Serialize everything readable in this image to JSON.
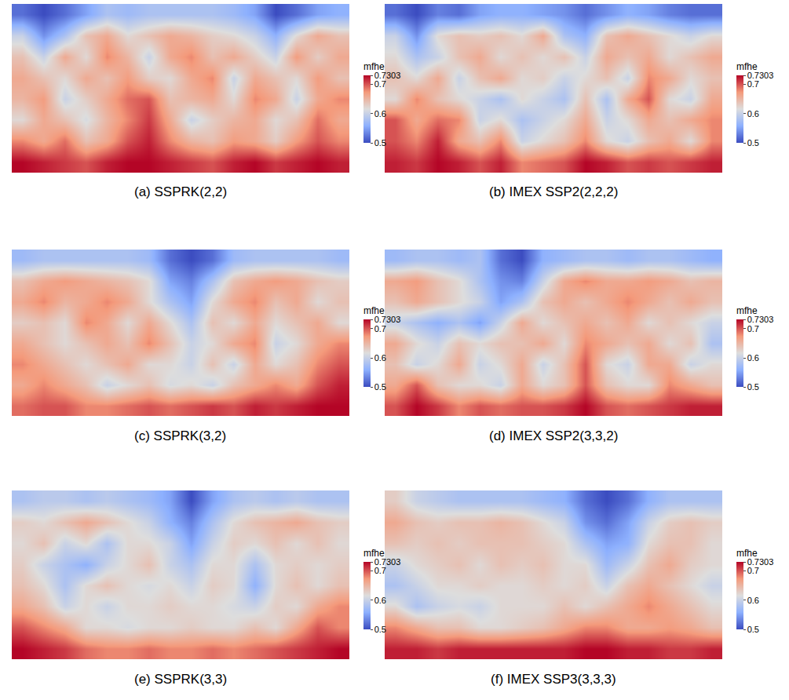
{
  "chart_data": [
    {
      "type": "heatmap",
      "title": "(a) SSPRK(2,2)",
      "tick_labels": false,
      "colorbar": {
        "title": "mfhe",
        "range": [
          0.5,
          0.7303
        ],
        "ticks": [
          0.5,
          0.6,
          0.7,
          0.7303
        ]
      },
      "z": [
        [
          0.52,
          0.5,
          0.52,
          0.55,
          0.58,
          0.57,
          0.58,
          0.58,
          0.58,
          0.58,
          0.57,
          0.55,
          0.5,
          0.52,
          0.55,
          0.56
        ],
        [
          0.6,
          0.54,
          0.58,
          0.64,
          0.66,
          0.62,
          0.64,
          0.66,
          0.65,
          0.63,
          0.62,
          0.6,
          0.56,
          0.62,
          0.66,
          0.64
        ],
        [
          0.64,
          0.6,
          0.66,
          0.62,
          0.68,
          0.65,
          0.6,
          0.66,
          0.68,
          0.64,
          0.66,
          0.63,
          0.6,
          0.67,
          0.63,
          0.66
        ],
        [
          0.66,
          0.64,
          0.62,
          0.66,
          0.64,
          0.67,
          0.63,
          0.62,
          0.66,
          0.68,
          0.6,
          0.66,
          0.64,
          0.62,
          0.67,
          0.64
        ],
        [
          0.65,
          0.67,
          0.6,
          0.63,
          0.66,
          0.69,
          0.7,
          0.64,
          0.65,
          0.66,
          0.62,
          0.68,
          0.66,
          0.6,
          0.66,
          0.68
        ],
        [
          0.62,
          0.66,
          0.64,
          0.61,
          0.65,
          0.68,
          0.71,
          0.66,
          0.6,
          0.63,
          0.65,
          0.66,
          0.62,
          0.64,
          0.69,
          0.66
        ],
        [
          0.68,
          0.66,
          0.69,
          0.64,
          0.66,
          0.7,
          0.72,
          0.68,
          0.65,
          0.64,
          0.67,
          0.66,
          0.63,
          0.67,
          0.7,
          0.68
        ],
        [
          0.73,
          0.72,
          0.71,
          0.7,
          0.72,
          0.73,
          0.73,
          0.72,
          0.71,
          0.7,
          0.72,
          0.73,
          0.71,
          0.72,
          0.73,
          0.72
        ]
      ]
    },
    {
      "type": "heatmap",
      "title": "(b) IMEX SSP2(2,2,2)",
      "tick_labels": false,
      "colorbar": {
        "title": "mfhe",
        "range": [
          0.5,
          0.7303
        ],
        "ticks": [
          0.5,
          0.6,
          0.7,
          0.7303
        ]
      },
      "z": [
        [
          0.52,
          0.5,
          0.53,
          0.52,
          0.55,
          0.56,
          0.56,
          0.55,
          0.54,
          0.52,
          0.54,
          0.56,
          0.55,
          0.53,
          0.52,
          0.52
        ],
        [
          0.6,
          0.54,
          0.62,
          0.64,
          0.63,
          0.64,
          0.62,
          0.66,
          0.58,
          0.56,
          0.64,
          0.66,
          0.64,
          0.62,
          0.6,
          0.62
        ],
        [
          0.62,
          0.58,
          0.6,
          0.64,
          0.66,
          0.62,
          0.64,
          0.62,
          0.64,
          0.6,
          0.66,
          0.64,
          0.66,
          0.62,
          0.64,
          0.66
        ],
        [
          0.64,
          0.62,
          0.66,
          0.6,
          0.64,
          0.66,
          0.62,
          0.63,
          0.6,
          0.62,
          0.64,
          0.6,
          0.68,
          0.66,
          0.62,
          0.64
        ],
        [
          0.62,
          0.68,
          0.64,
          0.62,
          0.6,
          0.58,
          0.62,
          0.6,
          0.58,
          0.64,
          0.58,
          0.66,
          0.7,
          0.62,
          0.6,
          0.66
        ],
        [
          0.7,
          0.66,
          0.69,
          0.68,
          0.6,
          0.62,
          0.58,
          0.6,
          0.62,
          0.66,
          0.6,
          0.62,
          0.66,
          0.64,
          0.66,
          0.68
        ],
        [
          0.7,
          0.68,
          0.72,
          0.66,
          0.64,
          0.68,
          0.6,
          0.62,
          0.64,
          0.68,
          0.62,
          0.6,
          0.64,
          0.66,
          0.62,
          0.68
        ],
        [
          0.72,
          0.71,
          0.73,
          0.72,
          0.7,
          0.72,
          0.68,
          0.69,
          0.7,
          0.73,
          0.72,
          0.7,
          0.71,
          0.7,
          0.71,
          0.72
        ]
      ]
    },
    {
      "type": "heatmap",
      "title": "(c) SSPRK(3,2)",
      "tick_labels": false,
      "colorbar": {
        "title": "mfhe",
        "range": [
          0.5,
          0.7303
        ],
        "ticks": [
          0.5,
          0.6,
          0.7,
          0.7303
        ]
      },
      "z": [
        [
          0.57,
          0.58,
          0.58,
          0.58,
          0.58,
          0.58,
          0.57,
          0.52,
          0.5,
          0.52,
          0.57,
          0.58,
          0.58,
          0.58,
          0.58,
          0.57
        ],
        [
          0.64,
          0.66,
          0.67,
          0.66,
          0.65,
          0.64,
          0.62,
          0.55,
          0.53,
          0.58,
          0.64,
          0.66,
          0.67,
          0.66,
          0.64,
          0.63
        ],
        [
          0.66,
          0.68,
          0.65,
          0.66,
          0.68,
          0.66,
          0.62,
          0.58,
          0.55,
          0.62,
          0.66,
          0.68,
          0.64,
          0.66,
          0.62,
          0.64
        ],
        [
          0.63,
          0.64,
          0.62,
          0.68,
          0.66,
          0.62,
          0.66,
          0.62,
          0.58,
          0.64,
          0.62,
          0.66,
          0.62,
          0.64,
          0.66,
          0.62
        ],
        [
          0.66,
          0.64,
          0.62,
          0.64,
          0.66,
          0.64,
          0.68,
          0.64,
          0.6,
          0.62,
          0.66,
          0.68,
          0.6,
          0.62,
          0.66,
          0.68
        ],
        [
          0.68,
          0.66,
          0.64,
          0.62,
          0.64,
          0.66,
          0.62,
          0.62,
          0.6,
          0.64,
          0.6,
          0.66,
          0.62,
          0.64,
          0.68,
          0.7
        ],
        [
          0.66,
          0.68,
          0.66,
          0.64,
          0.6,
          0.62,
          0.64,
          0.61,
          0.62,
          0.6,
          0.64,
          0.66,
          0.68,
          0.66,
          0.7,
          0.72
        ],
        [
          0.69,
          0.7,
          0.7,
          0.68,
          0.68,
          0.69,
          0.7,
          0.69,
          0.7,
          0.71,
          0.7,
          0.72,
          0.71,
          0.72,
          0.73,
          0.73
        ]
      ]
    },
    {
      "type": "heatmap",
      "title": "(d) IMEX SSP2(3,3,2)",
      "tick_labels": false,
      "colorbar": {
        "title": "mfhe",
        "range": [
          0.5,
          0.7303
        ],
        "ticks": [
          0.5,
          0.6,
          0.7,
          0.7303
        ]
      },
      "z": [
        [
          0.57,
          0.58,
          0.58,
          0.57,
          0.58,
          0.52,
          0.5,
          0.56,
          0.57,
          0.58,
          0.58,
          0.57,
          0.58,
          0.58,
          0.57,
          0.56
        ],
        [
          0.66,
          0.67,
          0.64,
          0.62,
          0.58,
          0.54,
          0.53,
          0.6,
          0.66,
          0.68,
          0.66,
          0.66,
          0.67,
          0.66,
          0.64,
          0.65
        ],
        [
          0.64,
          0.66,
          0.64,
          0.62,
          0.6,
          0.55,
          0.58,
          0.64,
          0.66,
          0.64,
          0.66,
          0.68,
          0.66,
          0.64,
          0.66,
          0.64
        ],
        [
          0.6,
          0.58,
          0.56,
          0.58,
          0.55,
          0.6,
          0.66,
          0.62,
          0.64,
          0.66,
          0.64,
          0.66,
          0.62,
          0.64,
          0.62,
          0.6
        ],
        [
          0.66,
          0.62,
          0.6,
          0.64,
          0.62,
          0.64,
          0.64,
          0.66,
          0.62,
          0.68,
          0.66,
          0.64,
          0.66,
          0.62,
          0.64,
          0.58
        ],
        [
          0.64,
          0.6,
          0.62,
          0.66,
          0.6,
          0.62,
          0.66,
          0.6,
          0.64,
          0.7,
          0.62,
          0.6,
          0.66,
          0.66,
          0.6,
          0.62
        ],
        [
          0.66,
          0.7,
          0.64,
          0.62,
          0.62,
          0.6,
          0.66,
          0.62,
          0.64,
          0.7,
          0.64,
          0.62,
          0.62,
          0.68,
          0.66,
          0.64
        ],
        [
          0.7,
          0.73,
          0.71,
          0.68,
          0.7,
          0.69,
          0.7,
          0.7,
          0.71,
          0.73,
          0.7,
          0.69,
          0.7,
          0.71,
          0.72,
          0.72
        ]
      ]
    },
    {
      "type": "heatmap",
      "title": "(e) SSPRK(3,3)",
      "tick_labels": false,
      "colorbar": {
        "title": "mfhe",
        "range": [
          0.5,
          0.7303
        ],
        "ticks": [
          0.5,
          0.6,
          0.7,
          0.7303
        ]
      },
      "z": [
        [
          0.58,
          0.59,
          0.59,
          0.58,
          0.59,
          0.58,
          0.57,
          0.55,
          0.5,
          0.55,
          0.58,
          0.59,
          0.58,
          0.59,
          0.58,
          0.58
        ],
        [
          0.63,
          0.62,
          0.64,
          0.66,
          0.64,
          0.62,
          0.6,
          0.56,
          0.53,
          0.58,
          0.62,
          0.64,
          0.65,
          0.66,
          0.64,
          0.63
        ],
        [
          0.62,
          0.64,
          0.6,
          0.62,
          0.58,
          0.62,
          0.62,
          0.6,
          0.55,
          0.6,
          0.63,
          0.62,
          0.64,
          0.62,
          0.64,
          0.62
        ],
        [
          0.63,
          0.6,
          0.58,
          0.56,
          0.6,
          0.62,
          0.64,
          0.6,
          0.58,
          0.62,
          0.62,
          0.58,
          0.62,
          0.63,
          0.62,
          0.63
        ],
        [
          0.64,
          0.62,
          0.58,
          0.62,
          0.64,
          0.62,
          0.61,
          0.62,
          0.6,
          0.63,
          0.62,
          0.56,
          0.62,
          0.64,
          0.62,
          0.64
        ],
        [
          0.66,
          0.64,
          0.6,
          0.62,
          0.6,
          0.62,
          0.62,
          0.63,
          0.62,
          0.62,
          0.61,
          0.6,
          0.63,
          0.62,
          0.66,
          0.68
        ],
        [
          0.7,
          0.68,
          0.66,
          0.62,
          0.62,
          0.61,
          0.62,
          0.62,
          0.63,
          0.62,
          0.62,
          0.64,
          0.62,
          0.66,
          0.7,
          0.68
        ],
        [
          0.73,
          0.72,
          0.71,
          0.69,
          0.68,
          0.68,
          0.69,
          0.68,
          0.68,
          0.69,
          0.68,
          0.69,
          0.7,
          0.71,
          0.72,
          0.73
        ]
      ]
    },
    {
      "type": "heatmap",
      "title": "(f) IMEX SSP3(3,3,3)",
      "tick_labels": false,
      "colorbar": {
        "title": "mfhe",
        "range": [
          0.5,
          0.7303
        ],
        "ticks": [
          0.5,
          0.6,
          0.7,
          0.7303
        ]
      },
      "z": [
        [
          0.63,
          0.6,
          0.59,
          0.58,
          0.58,
          0.58,
          0.58,
          0.57,
          0.56,
          0.52,
          0.5,
          0.52,
          0.56,
          0.58,
          0.58,
          0.58
        ],
        [
          0.66,
          0.64,
          0.63,
          0.64,
          0.64,
          0.65,
          0.64,
          0.62,
          0.6,
          0.54,
          0.52,
          0.55,
          0.6,
          0.63,
          0.64,
          0.63
        ],
        [
          0.64,
          0.63,
          0.64,
          0.63,
          0.64,
          0.64,
          0.64,
          0.63,
          0.62,
          0.58,
          0.55,
          0.56,
          0.62,
          0.64,
          0.64,
          0.62
        ],
        [
          0.6,
          0.62,
          0.63,
          0.64,
          0.62,
          0.64,
          0.63,
          0.64,
          0.62,
          0.62,
          0.57,
          0.6,
          0.64,
          0.66,
          0.63,
          0.62
        ],
        [
          0.58,
          0.6,
          0.62,
          0.62,
          0.63,
          0.62,
          0.62,
          0.63,
          0.62,
          0.63,
          0.6,
          0.64,
          0.66,
          0.64,
          0.62,
          0.6
        ],
        [
          0.62,
          0.58,
          0.6,
          0.61,
          0.6,
          0.62,
          0.62,
          0.62,
          0.64,
          0.62,
          0.64,
          0.66,
          0.68,
          0.66,
          0.64,
          0.62
        ],
        [
          0.68,
          0.66,
          0.64,
          0.64,
          0.62,
          0.62,
          0.63,
          0.64,
          0.66,
          0.68,
          0.68,
          0.66,
          0.66,
          0.67,
          0.66,
          0.64
        ],
        [
          0.72,
          0.72,
          0.71,
          0.72,
          0.72,
          0.72,
          0.72,
          0.72,
          0.72,
          0.73,
          0.73,
          0.72,
          0.72,
          0.71,
          0.71,
          0.72
        ]
      ]
    }
  ]
}
